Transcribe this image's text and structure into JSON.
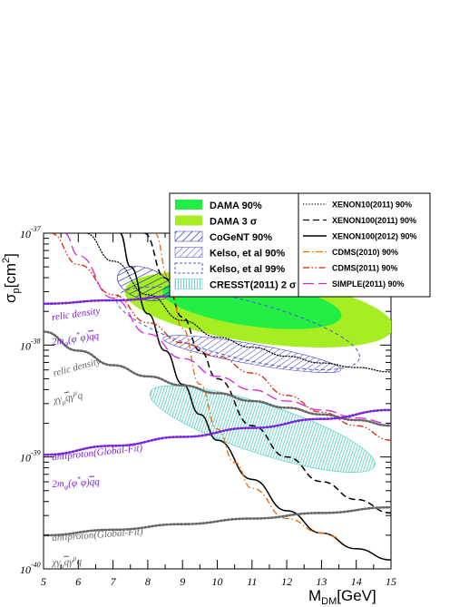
{
  "chart_data": {
    "type": "line",
    "xlabel": "M",
    "xlabel_sub": "DM",
    "xlabel_unit": "[GeV]",
    "ylabel": "σ",
    "ylabel_sub": "p",
    "ylabel_unit": "[cm",
    "ylabel_sup": "2",
    "ylabel_close": "]",
    "xlim": [
      5,
      15
    ],
    "ylim_log10": [
      -40,
      -37
    ],
    "yscale": "log",
    "x_ticks": [
      5,
      6,
      7,
      8,
      9,
      10,
      11,
      12,
      13,
      14,
      15
    ],
    "x_tick_labels": [
      "5",
      "6",
      "7",
      "8",
      "9",
      "10",
      "11",
      "12",
      "13",
      "14",
      "15"
    ],
    "y_ticks": [
      {
        "exp": -40,
        "base": "10",
        "sup": "-40"
      },
      {
        "exp": -39,
        "base": "10",
        "sup": "-39"
      },
      {
        "exp": -38,
        "base": "10",
        "sup": "-38"
      },
      {
        "exp": -37,
        "base": "10",
        "sup": "-37"
      }
    ],
    "legend_placement": "top, above plot",
    "legend_left": [
      {
        "label": "DAMA 90%",
        "style": "fill",
        "color": "#22ee44"
      },
      {
        "label": "DAMA 3 σ",
        "style": "fill",
        "color": "#a6ee22"
      },
      {
        "label": "CoGeNT 90%",
        "style": "hatch",
        "color": "#2222aa"
      },
      {
        "label": "Kelso, et al 90%",
        "style": "hatch",
        "color": "#4444cc"
      },
      {
        "label": "Kelso, et al 99%",
        "style": "dashbox",
        "color": "#5555dd"
      },
      {
        "label": "CRESST(2011) 2 σ",
        "style": "vhatch",
        "color": "#44ccbb"
      }
    ],
    "legend_right": [
      {
        "label": "XENON10(2011) 90%",
        "style": "dotted",
        "color": "#000000"
      },
      {
        "label": "XENON100(2011) 90%",
        "style": "dashed",
        "color": "#000000"
      },
      {
        "label": "XENON100(2012) 90%",
        "style": "solid",
        "color": "#000000"
      },
      {
        "label": "CDMS(2010) 90%",
        "style": "dashdot",
        "color": "#ee6600"
      },
      {
        "label": "CDMS(2011) 90%",
        "style": "dashdotdot",
        "color": "#dd2200"
      },
      {
        "label": "SIMPLE(2011) 90%",
        "style": "longdash",
        "color": "#dd22dd"
      }
    ],
    "series": [
      {
        "name": "XENON10(2011) 90%",
        "style": "dotted",
        "color": "#000000",
        "points": [
          [
            6.2,
            -37.0
          ],
          [
            7,
            -37.25
          ],
          [
            8,
            -37.55
          ],
          [
            9,
            -37.78
          ],
          [
            10,
            -37.93
          ],
          [
            11,
            -38.02
          ],
          [
            12,
            -38.1
          ],
          [
            13,
            -38.16
          ],
          [
            14,
            -38.2
          ],
          [
            15,
            -38.24
          ]
        ]
      },
      {
        "name": "XENON100(2011) 90%",
        "style": "dashed",
        "color": "#000000",
        "points": [
          [
            7.9,
            -37.0
          ],
          [
            8.5,
            -37.4
          ],
          [
            9,
            -37.75
          ],
          [
            9.5,
            -38.05
          ],
          [
            10,
            -38.3
          ],
          [
            11,
            -38.72
          ],
          [
            12,
            -39.0
          ],
          [
            13,
            -39.22
          ],
          [
            14,
            -39.38
          ],
          [
            15,
            -39.5
          ]
        ]
      },
      {
        "name": "XENON100(2012) 90%",
        "style": "solid",
        "color": "#000000",
        "points": [
          [
            7.2,
            -37.0
          ],
          [
            7.5,
            -37.3
          ],
          [
            8,
            -37.72
          ],
          [
            8.5,
            -38.05
          ],
          [
            9,
            -38.35
          ],
          [
            9.5,
            -38.62
          ],
          [
            10,
            -38.85
          ],
          [
            11,
            -39.2
          ],
          [
            12,
            -39.48
          ],
          [
            13,
            -39.68
          ],
          [
            14,
            -39.82
          ],
          [
            15,
            -39.92
          ]
        ]
      },
      {
        "name": "CDMS(2010) 90%",
        "style": "dashdot",
        "color": "#ee6600",
        "points": [
          [
            8.2,
            -37.0
          ],
          [
            8.6,
            -37.4
          ],
          [
            9,
            -37.85
          ],
          [
            9.5,
            -38.35
          ],
          [
            10,
            -38.75
          ],
          [
            10.5,
            -39.05
          ],
          [
            11,
            -39.28
          ],
          [
            12,
            -39.55
          ],
          [
            13,
            -39.68
          ],
          [
            13.5,
            -39.72
          ]
        ]
      },
      {
        "name": "CDMS(2011) 90%",
        "style": "dashdotdot",
        "color": "#dd2200",
        "points": [
          [
            5.2,
            -37.0
          ],
          [
            6,
            -37.28
          ],
          [
            7,
            -37.55
          ],
          [
            8,
            -37.8
          ],
          [
            9,
            -37.98
          ],
          [
            10,
            -38.1
          ],
          [
            11,
            -38.25
          ],
          [
            12,
            -38.45
          ],
          [
            13,
            -38.6
          ],
          [
            14,
            -38.72
          ],
          [
            15,
            -38.85
          ]
        ]
      },
      {
        "name": "SIMPLE(2011) 90%",
        "style": "longdash",
        "color": "#dd22dd",
        "points": [
          [
            5.6,
            -37.0
          ],
          [
            6,
            -37.2
          ],
          [
            7,
            -37.58
          ],
          [
            8,
            -37.9
          ],
          [
            9,
            -38.12
          ],
          [
            10,
            -38.28
          ],
          [
            11,
            -38.4
          ],
          [
            12,
            -38.5
          ],
          [
            13,
            -38.58
          ],
          [
            14,
            -38.65
          ],
          [
            15,
            -38.7
          ]
        ]
      },
      {
        "name": "relic-density-2m",
        "style": "dotted-thick",
        "color": "#7a22dd",
        "points": [
          [
            5,
            -37.63
          ],
          [
            7,
            -37.6
          ],
          [
            9,
            -37.56
          ],
          [
            11,
            -37.52
          ],
          [
            13,
            -37.49
          ],
          [
            15,
            -37.46
          ]
        ]
      },
      {
        "name": "relic-density-chi",
        "style": "dotted-thick",
        "color": "#666666",
        "points": [
          [
            5,
            -37.88
          ],
          [
            6,
            -38.05
          ],
          [
            7,
            -38.18
          ],
          [
            8,
            -38.28
          ],
          [
            9,
            -38.36
          ],
          [
            10,
            -38.43
          ],
          [
            11,
            -38.5
          ],
          [
            12,
            -38.56
          ],
          [
            13,
            -38.62
          ],
          [
            14,
            -38.67
          ],
          [
            15,
            -38.72
          ]
        ]
      },
      {
        "name": "antiproton-2m",
        "style": "dotted-thick",
        "color": "#7a22dd",
        "points": [
          [
            5,
            -38.98
          ],
          [
            7,
            -38.9
          ],
          [
            9,
            -38.82
          ],
          [
            11,
            -38.74
          ],
          [
            13,
            -38.66
          ],
          [
            15,
            -38.58
          ]
        ]
      },
      {
        "name": "antiproton-chi",
        "style": "dotted-thick",
        "color": "#666666",
        "points": [
          [
            5,
            -39.7
          ],
          [
            7,
            -39.65
          ],
          [
            9,
            -39.6
          ],
          [
            11,
            -39.55
          ],
          [
            13,
            -39.5
          ],
          [
            15,
            -39.45
          ]
        ]
      }
    ],
    "regions": [
      {
        "name": "DAMA 3 σ",
        "color": "#a6ee22",
        "cx": 11.2,
        "cy": -37.68,
        "rx": 3.9,
        "ry": 0.3,
        "rot": 8
      },
      {
        "name": "DAMA 90%",
        "color": "#22ee44",
        "cx": 11.0,
        "cy": -37.63,
        "rx": 2.6,
        "ry": 0.2,
        "rot": 8
      },
      {
        "name": "CoGeNT 90%",
        "color": "#2222aa",
        "cx": 7.9,
        "cy": -37.45,
        "rx": 0.8,
        "ry": 0.14,
        "rot": 18
      },
      {
        "name": "Kelso, et al 90%",
        "color": "#4444cc",
        "cx": 11.0,
        "cy": -38.08,
        "rx": 2.6,
        "ry": 0.09,
        "rot": 10
      },
      {
        "name": "Kelso, et al 99%",
        "color": "#5555dd",
        "cx": 10.6,
        "cy": -37.85,
        "rx": 3.6,
        "ry": 0.26,
        "rot": 14
      },
      {
        "name": "CRESST(2011) 2 σ",
        "color": "#44ccbb",
        "cx": 11.3,
        "cy": -38.75,
        "rx": 3.4,
        "ry": 0.22,
        "rot": 18
      }
    ],
    "annotations": [
      {
        "text": "relic density",
        "color": "#7a22dd",
        "x": 5.25,
        "y": -37.78,
        "rot": -8
      },
      {
        "text": "2m",
        "sub": "φ",
        "tail": "(φ",
        "sup": "*",
        "tail2": "φ)",
        "bar": "q",
        "end": "q",
        "color": "#7a22dd",
        "x": 5.25,
        "y": -38.0,
        "rot": -8
      },
      {
        "text": "relic density",
        "color": "#666666",
        "x": 5.3,
        "y": -38.28,
        "rot": -15
      },
      {
        "text": "χγ",
        "sub": "μ",
        "bar": "q",
        "mid": "γ",
        "sup": "μ",
        "end": "q",
        "color": "#666666",
        "x": 5.3,
        "y": -38.52,
        "rot": -10
      },
      {
        "text": "antiproton(Global-Fit)",
        "color": "#7a22dd",
        "x": 5.25,
        "y": -39.03,
        "rot": -6
      },
      {
        "text": "2m",
        "sub": "φ",
        "tail": "(φ",
        "sup": "*",
        "tail2": "φ)",
        "bar": "q",
        "end": "q",
        "color": "#7a22dd",
        "x": 5.25,
        "y": -39.27,
        "rot": -3
      },
      {
        "text": "antiproton(Global-Fit)",
        "color": "#666666",
        "x": 5.25,
        "y": -39.75,
        "rot": -4
      },
      {
        "text": "χγ",
        "sub": "μ",
        "bar": "q",
        "mid": "γ",
        "sup": "μ",
        "end": "q",
        "color": "#666666",
        "x": 5.25,
        "y": -39.97,
        "rot": -2
      }
    ]
  }
}
